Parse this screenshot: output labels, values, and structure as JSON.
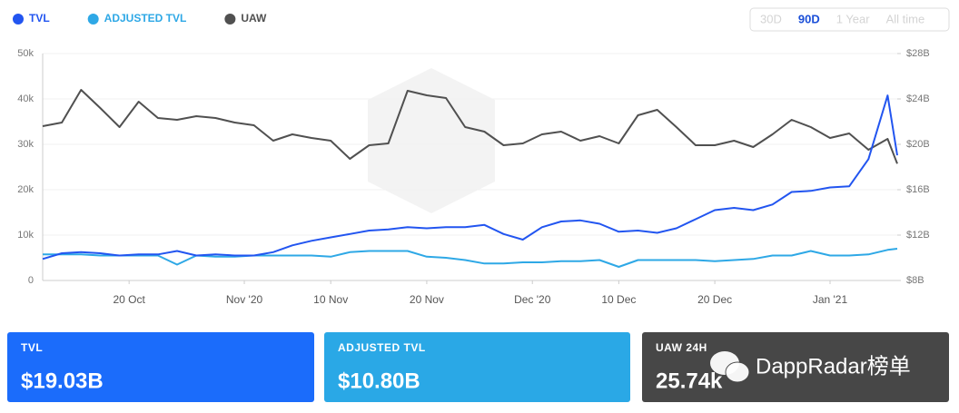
{
  "chart_data": {
    "type": "line",
    "x": [
      "2020-10-11",
      "2020-10-13",
      "2020-10-15",
      "2020-10-17",
      "2020-10-19",
      "2020-10-21",
      "2020-10-23",
      "2020-10-25",
      "2020-10-27",
      "2020-10-29",
      "2020-10-31",
      "2020-11-02",
      "2020-11-04",
      "2020-11-06",
      "2020-11-08",
      "2020-11-10",
      "2020-11-12",
      "2020-11-14",
      "2020-11-16",
      "2020-11-18",
      "2020-11-20",
      "2020-11-22",
      "2020-11-24",
      "2020-11-26",
      "2020-11-28",
      "2020-11-30",
      "2020-12-02",
      "2020-12-04",
      "2020-12-06",
      "2020-12-08",
      "2020-12-10",
      "2020-12-12",
      "2020-12-14",
      "2020-12-16",
      "2020-12-18",
      "2020-12-20",
      "2020-12-22",
      "2020-12-24",
      "2020-12-26",
      "2020-12-28",
      "2020-12-30",
      "2021-01-01",
      "2021-01-03",
      "2021-01-05",
      "2021-01-07",
      "2021-01-08"
    ],
    "xlim": [
      "2020-10-11",
      "2021-01-08"
    ],
    "xticks": [
      {
        "value": "2020-10-20",
        "label": "20 Oct"
      },
      {
        "value": "2020-11-01",
        "label": "Nov '20"
      },
      {
        "value": "2020-11-10",
        "label": "10 Nov"
      },
      {
        "value": "2020-11-20",
        "label": "20 Nov"
      },
      {
        "value": "2020-12-01",
        "label": "Dec '20"
      },
      {
        "value": "2020-12-10",
        "label": "10 Dec"
      },
      {
        "value": "2020-12-20",
        "label": "20 Dec"
      },
      {
        "value": "2021-01-01",
        "label": "Jan '21"
      }
    ],
    "ylim": [
      0,
      50000
    ],
    "yticks": [
      0,
      {
        "value": 10000,
        "label": "10k"
      },
      {
        "value": 20000,
        "label": "20k"
      },
      {
        "value": 30000,
        "label": "30k"
      },
      {
        "value": 40000,
        "label": "40k"
      },
      {
        "value": 50000,
        "label": "50k"
      }
    ],
    "y2lim": [
      8,
      28
    ],
    "y2ticks": [
      {
        "value": 8,
        "label": "$8B"
      },
      {
        "value": 12,
        "label": "$12B"
      },
      {
        "value": 16,
        "label": "$16B"
      },
      {
        "value": 20,
        "label": "$20B"
      },
      {
        "value": 24,
        "label": "$24B"
      },
      {
        "value": 28,
        "label": "$28B"
      }
    ],
    "series": [
      {
        "name": "TVL",
        "color": "#2255f0",
        "axis": "y2",
        "values": [
          9.9,
          10.4,
          10.5,
          10.4,
          10.2,
          10.3,
          10.3,
          10.6,
          10.2,
          10.3,
          10.2,
          10.2,
          10.5,
          11.1,
          11.5,
          11.8,
          12.1,
          12.4,
          12.5,
          12.7,
          12.6,
          12.7,
          12.7,
          12.9,
          12.1,
          11.6,
          12.7,
          13.2,
          13.3,
          13.0,
          12.3,
          12.4,
          12.2,
          12.6,
          13.4,
          14.2,
          14.4,
          14.2,
          14.7,
          15.8,
          15.9,
          16.2,
          16.3,
          18.7,
          24.3,
          19.03
        ]
      },
      {
        "name": "ADJUSTED TVL",
        "color": "#2ea8e6",
        "axis": "y2",
        "values": [
          10.3,
          10.3,
          10.3,
          10.2,
          10.2,
          10.2,
          10.2,
          9.4,
          10.2,
          10.1,
          10.1,
          10.2,
          10.2,
          10.2,
          10.2,
          10.1,
          10.5,
          10.6,
          10.6,
          10.6,
          10.1,
          10.0,
          9.8,
          9.5,
          9.5,
          9.6,
          9.6,
          9.7,
          9.7,
          9.8,
          9.2,
          9.8,
          9.8,
          9.8,
          9.8,
          9.7,
          9.8,
          9.9,
          10.2,
          10.2,
          10.6,
          10.2,
          10.2,
          10.3,
          10.7,
          10.8
        ]
      },
      {
        "name": "UAW",
        "color": "#505050",
        "values": [
          34000,
          34800,
          42000,
          38000,
          33800,
          39400,
          35800,
          35400,
          36200,
          35800,
          34800,
          34200,
          30800,
          32200,
          31400,
          30800,
          26800,
          29800,
          30200,
          41800,
          40800,
          40200,
          33800,
          32800,
          29800,
          30200,
          32200,
          32800,
          30800,
          31800,
          30200,
          36400,
          37600,
          33800,
          29800,
          29800,
          30800,
          29400,
          32200,
          35400,
          33800,
          31400,
          32400,
          28800,
          31200,
          25740
        ]
      }
    ],
    "grid": true,
    "range_options": [
      "30D",
      "90D",
      "1 Year",
      "All time"
    ],
    "range_active_index": 1,
    "stats": [
      {
        "label": "TVL",
        "value": "$19.03B",
        "color": "#1b6cfb"
      },
      {
        "label": "ADJUSTED TVL",
        "value": "$10.80B",
        "color": "#2aa8e6"
      },
      {
        "label": "UAW 24H",
        "value": "25.74k",
        "color": "#474747"
      }
    ],
    "watermark": "DappRadar榜单"
  }
}
